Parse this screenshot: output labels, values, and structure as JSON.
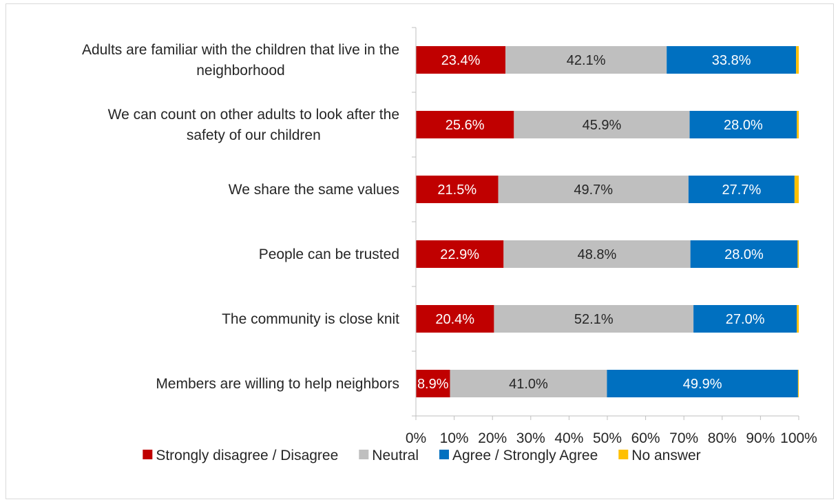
{
  "chart_data": {
    "type": "bar",
    "orientation": "horizontal",
    "stacked": "percent",
    "title": "",
    "xlabel": "",
    "ylabel": "",
    "xlim": [
      0,
      100
    ],
    "x_ticks": [
      "0%",
      "10%",
      "20%",
      "30%",
      "40%",
      "50%",
      "60%",
      "70%",
      "80%",
      "90%",
      "100%"
    ],
    "categories": [
      [
        "Adults are familiar with the children that live in the",
        "neighborhood"
      ],
      [
        "We can count on other adults to look after the",
        "safety of our children"
      ],
      [
        "We share the same values"
      ],
      [
        "People can be trusted"
      ],
      [
        "The community is close knit"
      ],
      [
        "Members are willing to help neighbors"
      ]
    ],
    "series": [
      {
        "name": "Strongly disagree / Disagree",
        "color": "#C00000",
        "label_color": "#ffffff",
        "values": [
          23.4,
          25.6,
          21.5,
          22.9,
          20.4,
          8.9
        ],
        "labels": [
          "23.4%",
          "25.6%",
          "21.5%",
          "22.9%",
          "20.4%",
          "8.9%"
        ]
      },
      {
        "name": "Neutral",
        "color": "#BFBFBF",
        "label_color": "#262626",
        "values": [
          42.1,
          45.9,
          49.7,
          48.8,
          52.1,
          41.0
        ],
        "labels": [
          "42.1%",
          "45.9%",
          "49.7%",
          "48.8%",
          "52.1%",
          "41.0%"
        ]
      },
      {
        "name": "Agree / Strongly Agree",
        "color": "#0070C0",
        "label_color": "#ffffff",
        "values": [
          33.8,
          28.0,
          27.7,
          28.0,
          27.0,
          49.9
        ],
        "labels": [
          "33.8%",
          "28.0%",
          "27.7%",
          "28.0%",
          "27.0%",
          "49.9%"
        ]
      },
      {
        "name": "No answer",
        "color": "#FFC000",
        "label_color": "#262626",
        "values": [
          0.7,
          0.5,
          1.1,
          0.3,
          0.5,
          0.2
        ],
        "labels": [
          null,
          null,
          null,
          null,
          null,
          null
        ]
      }
    ],
    "legend": {
      "position": "bottom"
    },
    "grid": false
  }
}
